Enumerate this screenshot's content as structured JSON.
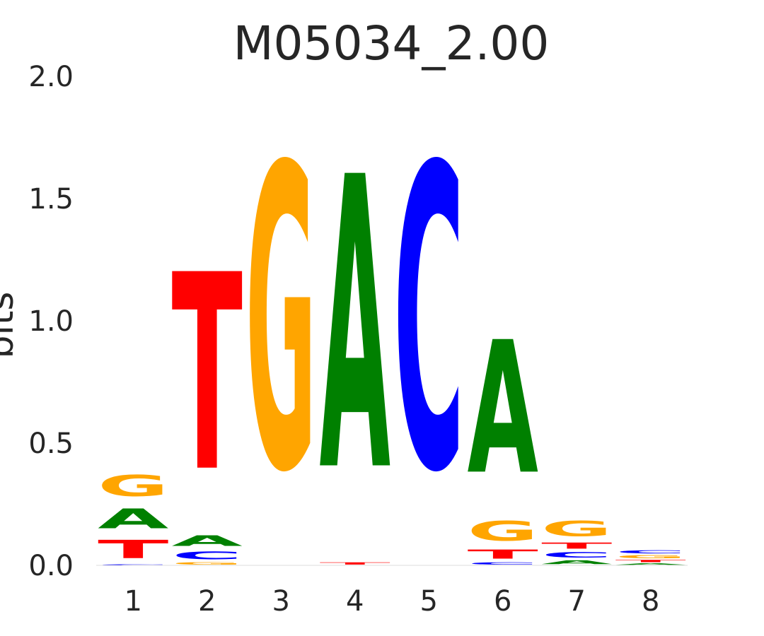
{
  "chart_data": {
    "type": "sequence-logo",
    "title": "M05034_2.00",
    "ylabel": "bits",
    "ylim": [
      0,
      2.0
    ],
    "yticks": [
      "0.0",
      "0.5",
      "1.0",
      "1.5",
      "2.0"
    ],
    "ytick_values": [
      0,
      0.5,
      1.0,
      1.5,
      2.0
    ],
    "positions": [
      "1",
      "2",
      "3",
      "4",
      "5",
      "6",
      "7",
      "8"
    ],
    "colors": {
      "A": "#008000",
      "C": "#0000ff",
      "G": "#ffa500",
      "T": "#ff0000"
    },
    "columns": [
      [
        {
          "base": "C",
          "bits": 0.005
        },
        {
          "base": "T",
          "bits": 0.12
        },
        {
          "base": "A",
          "bits": 0.13
        },
        {
          "base": "G",
          "bits": 0.14
        }
      ],
      [
        {
          "base": "G",
          "bits": 0.015
        },
        {
          "base": "C",
          "bits": 0.05
        },
        {
          "base": "A",
          "bits": 0.07
        },
        {
          "base": "T",
          "bits": 1.29
        }
      ],
      [
        {
          "base": "G",
          "bits": 1.99
        }
      ],
      [
        {
          "base": "T",
          "bits": 0.015
        },
        {
          "base": "A",
          "bits": 1.92
        }
      ],
      [
        {
          "base": "C",
          "bits": 1.99
        }
      ],
      [
        {
          "base": "C",
          "bits": 0.015
        },
        {
          "base": "T",
          "bits": 0.06
        },
        {
          "base": "G",
          "bits": 0.13
        },
        {
          "base": "A",
          "bits": 0.87
        }
      ],
      [
        {
          "base": "A",
          "bits": 0.025
        },
        {
          "base": "C",
          "bits": 0.035
        },
        {
          "base": "T",
          "bits": 0.04
        },
        {
          "base": "G",
          "bits": 0.1
        }
      ],
      [
        {
          "base": "A",
          "bits": 0.01
        },
        {
          "base": "T",
          "bits": 0.015
        },
        {
          "base": "G",
          "bits": 0.02
        },
        {
          "base": "C",
          "bits": 0.02
        }
      ]
    ]
  }
}
